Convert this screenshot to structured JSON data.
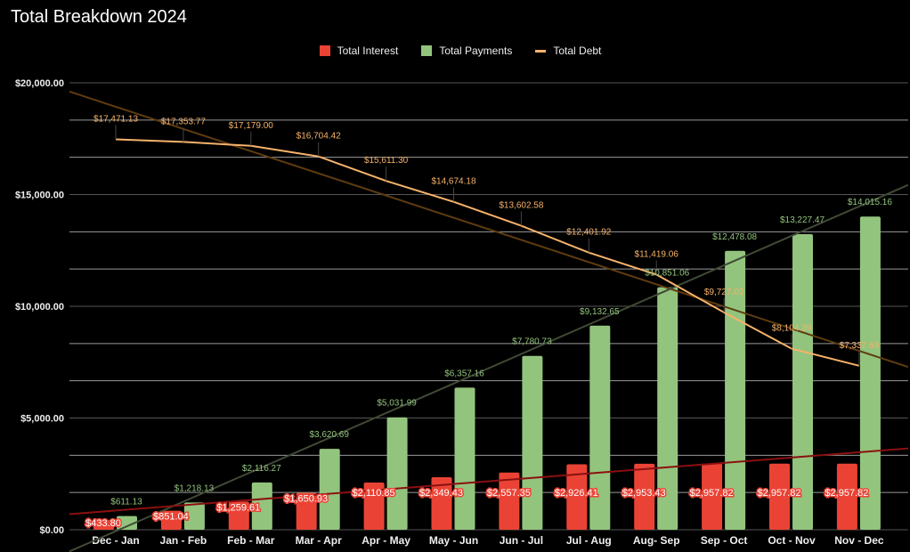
{
  "chart_data": {
    "type": "bar",
    "title": "Total Breakdown 2024",
    "xlabel": "",
    "ylabel": "",
    "ylim": [
      0,
      20000
    ],
    "y_ticks": [
      "$0.00",
      "$5,000.00",
      "$10,000.00",
      "$15,000.00",
      "$20,000.00"
    ],
    "y_tick_values": [
      0,
      5000,
      10000,
      15000,
      20000
    ],
    "grid": true,
    "legend_position": "top",
    "categories": [
      "Dec - Jan",
      "Jan - Feb",
      "Feb - Mar",
      "Mar - Apr",
      "Apr - May",
      "May - Jun",
      "Jun - Jul",
      "Jul - Aug",
      "Aug- Sep",
      "Sep - Oct",
      "Oct - Nov",
      "Nov - Dec"
    ],
    "series": [
      {
        "name": "Total Interest",
        "type": "bar",
        "color": "#ea4335",
        "trendline": true,
        "values": [
          433.8,
          851.04,
          1259.61,
          1650.93,
          2110.85,
          2349.43,
          2557.35,
          2926.41,
          2953.43,
          2957.82,
          2957.82,
          2957.82
        ],
        "labels": [
          "$433.80",
          "$851.04",
          "$1,259.61",
          "$1,650.93",
          "$2,110.85",
          "$2,349.43",
          "$2,557.35",
          "$2,926.41",
          "$2,953.43",
          "$2,957.82",
          "$2,957.82",
          "$2,957.82"
        ]
      },
      {
        "name": "Total Payments",
        "type": "bar",
        "color": "#93c47d",
        "trendline": true,
        "values": [
          611.13,
          1218.13,
          2116.27,
          3620.69,
          5031.99,
          6357.16,
          7780.73,
          9132.65,
          10851.06,
          12478.08,
          13227.47,
          14015.16
        ],
        "labels": [
          "$611.13",
          "$1,218.13",
          "$2,116.27",
          "$3,620.69",
          "$5,031.99",
          "$6,357.16",
          "$7,780.73",
          "$9,132.65",
          "$10,851.06",
          "$12,478.08",
          "$13,227.47",
          "$14,015.16"
        ]
      },
      {
        "name": "Total Debt",
        "type": "line",
        "color": "#f6b26b",
        "trendline": true,
        "values": [
          17471.13,
          17353.77,
          17179.0,
          16704.42,
          15611.3,
          14674.18,
          13602.58,
          12401.92,
          11419.06,
          9727.02,
          8104.39,
          7337.69
        ],
        "labels": [
          "$17,471.13",
          "$17,353.77",
          "$17,179.00",
          "$16,704.42",
          "$15,611.30",
          "$14,674.18",
          "$13,602.58",
          "$12,401.92",
          "$11,419.06",
          "$9,727.02",
          "$8,104.39",
          "$7,337.69"
        ]
      }
    ]
  }
}
